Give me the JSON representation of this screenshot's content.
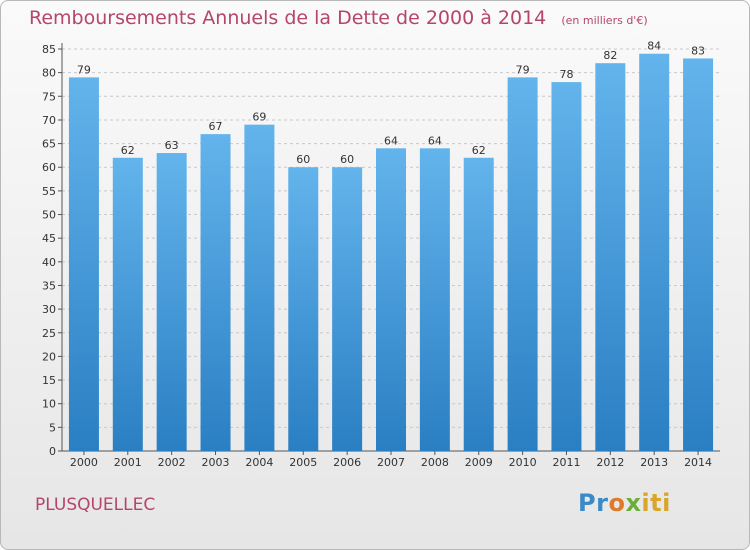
{
  "header": {
    "title": "Remboursements Annuels de la Dette de 2000 à 2014",
    "unit": "(en milliers d'€)"
  },
  "footer": {
    "commune": "PLUSQUELLEC",
    "logo_text": "Proxiti"
  },
  "colors": {
    "title": "#b5456d",
    "bar_top": "#63b4ec",
    "bar_bottom": "#2a7fc3"
  },
  "chart_data": {
    "type": "bar",
    "title": "Remboursements Annuels de la Dette de 2000 à 2014",
    "xlabel": "",
    "ylabel": "",
    "categories": [
      "2000",
      "2001",
      "2002",
      "2003",
      "2004",
      "2005",
      "2006",
      "2007",
      "2008",
      "2009",
      "2010",
      "2011",
      "2012",
      "2013",
      "2014"
    ],
    "values": [
      79,
      62,
      63,
      67,
      69,
      60,
      60,
      64,
      64,
      62,
      79,
      78,
      82,
      84,
      83
    ],
    "ylim": [
      0,
      85
    ],
    "yticks": [
      0,
      5,
      10,
      15,
      20,
      25,
      30,
      35,
      40,
      45,
      50,
      55,
      60,
      65,
      70,
      75,
      80,
      85
    ],
    "grid": true,
    "legend": "none",
    "data_labels": true
  }
}
